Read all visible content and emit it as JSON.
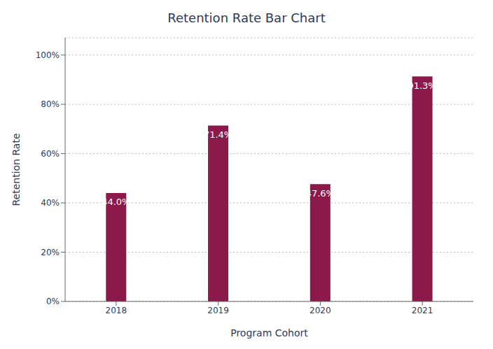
{
  "chart_data": {
    "type": "bar",
    "title": "Retention Rate Bar Chart",
    "xlabel": "Program Cohort",
    "ylabel": "Retention Rate",
    "categories": [
      "2018",
      "2019",
      "2020",
      "2021"
    ],
    "values": [
      44.0,
      71.4,
      47.6,
      91.3
    ],
    "value_labels": [
      "44.0%",
      "71.4%",
      "47.6%",
      "91.3%"
    ],
    "data_labels": true,
    "color": "#8B1A4A",
    "ylim": [
      0,
      107
    ],
    "yticks": [
      {
        "value": 0,
        "label": "0%"
      },
      {
        "value": 20,
        "label": "20%"
      },
      {
        "value": 40,
        "label": "40%"
      },
      {
        "value": 60,
        "label": "60%"
      },
      {
        "value": 80,
        "label": "80%"
      },
      {
        "value": 100,
        "label": "100%"
      }
    ],
    "grid": true
  }
}
